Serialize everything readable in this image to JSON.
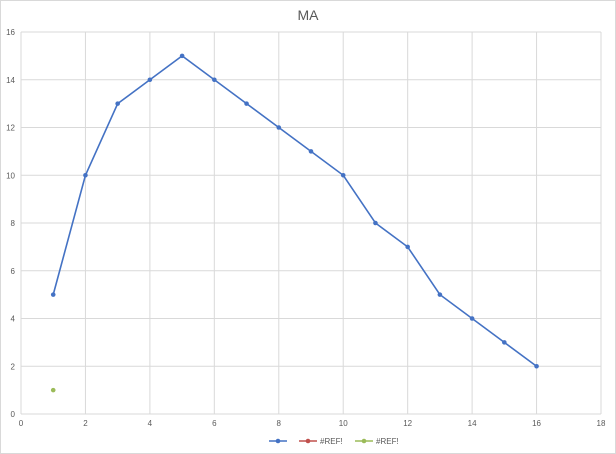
{
  "chart_data": {
    "type": "scatter",
    "title": "MA",
    "xlabel": "",
    "ylabel": "",
    "xlim": [
      0,
      18
    ],
    "ylim": [
      0,
      16
    ],
    "x_ticks": [
      0,
      2,
      4,
      6,
      8,
      10,
      12,
      14,
      16,
      18
    ],
    "y_ticks": [
      0,
      2,
      4,
      6,
      8,
      10,
      12,
      14,
      16
    ],
    "grid": true,
    "legend_position": "bottom",
    "series": [
      {
        "name": "",
        "color": "#4472c4",
        "line": true,
        "x": [
          1,
          2,
          3,
          4,
          5,
          6,
          7,
          8,
          9,
          10,
          11,
          12,
          13,
          14,
          15,
          16
        ],
        "y": [
          5,
          10,
          13,
          14,
          15,
          14,
          13,
          12,
          11,
          10,
          8,
          7,
          5,
          4,
          3,
          2
        ]
      },
      {
        "name": "#REF!",
        "color": "#c0504d",
        "line": true,
        "x": [],
        "y": []
      },
      {
        "name": "#REF!",
        "color": "#9bbb59",
        "line": true,
        "x": [
          1
        ],
        "y": [
          1
        ]
      }
    ]
  }
}
